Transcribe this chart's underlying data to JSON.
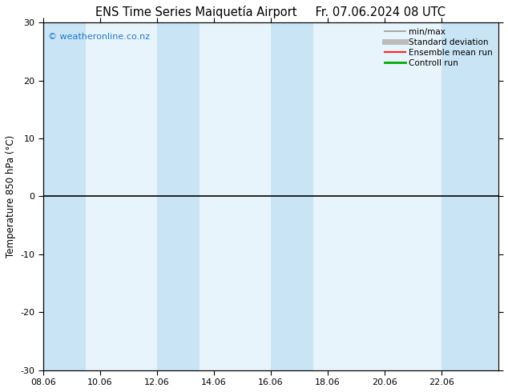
{
  "title": "ENS Time Series Maiquetía Airport     Fr. 07.06.2024 08 UTC",
  "ylabel": "Temperature 850 hPa (°C)",
  "ylim": [
    -30,
    30
  ],
  "yticks": [
    -30,
    -20,
    -10,
    0,
    10,
    20,
    30
  ],
  "xtick_labels": [
    "08.06",
    "10.06",
    "12.06",
    "14.06",
    "16.06",
    "18.06",
    "20.06",
    "22.06"
  ],
  "xtick_positions": [
    0,
    2,
    4,
    6,
    8,
    10,
    12,
    14
  ],
  "xlim": [
    0,
    16
  ],
  "watermark": "© weatheronline.co.nz",
  "bg_color": "#ffffff",
  "plot_bg_color": "#e8f4fb",
  "band_color": "#c8e4f5",
  "band_pairs": [
    [
      0,
      1.5
    ],
    [
      4,
      5.5
    ],
    [
      8.0,
      9.5
    ],
    [
      14,
      16
    ]
  ],
  "legend_items": [
    {
      "label": "min/max",
      "color": "#999999",
      "lw": 1.2,
      "marker": "|"
    },
    {
      "label": "Standard deviation",
      "color": "#bbbbbb",
      "lw": 5
    },
    {
      "label": "Ensemble mean run",
      "color": "#ff2222",
      "lw": 1.5
    },
    {
      "label": "Controll run",
      "color": "#00aa00",
      "lw": 2.0
    }
  ],
  "zero_line_color": "#000000",
  "title_fontsize": 10.5,
  "axis_fontsize": 8.5,
  "tick_fontsize": 8,
  "watermark_color": "#2277cc"
}
